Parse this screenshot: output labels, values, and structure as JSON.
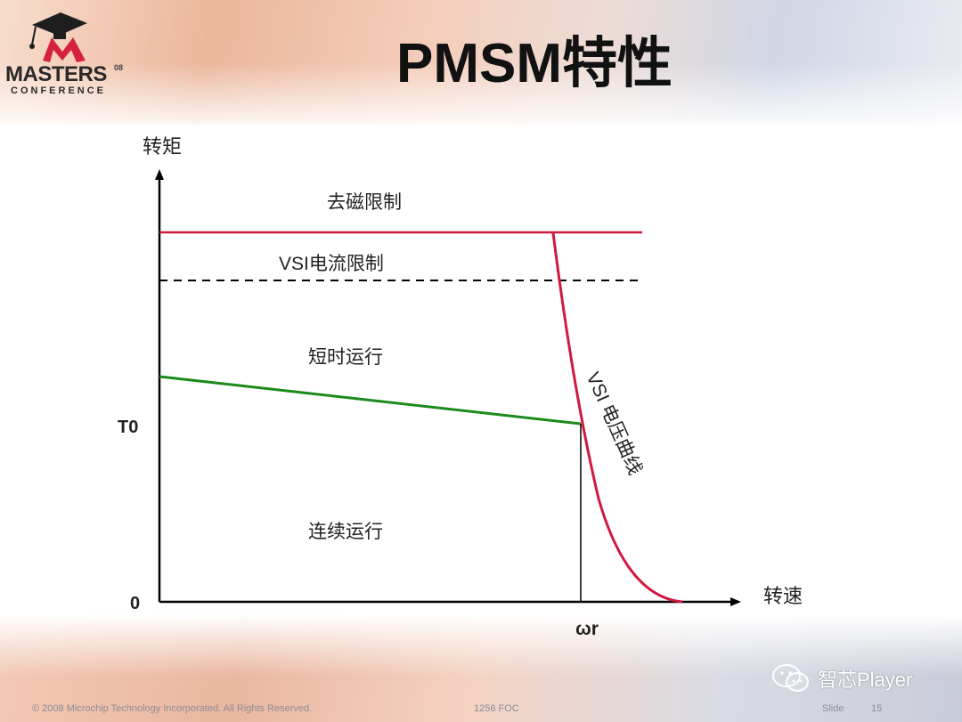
{
  "slide": {
    "title": "PMSM特性",
    "logo": {
      "text": "MASTERS",
      "year": "08",
      "sub": "CONFERENCE"
    }
  },
  "diagram": {
    "y_axis_label": "转矩",
    "x_axis_label": "转速",
    "origin_label": "0",
    "t0_label": "T0",
    "wr_label": "ωr",
    "regions": {
      "demag_limit": "去磁限制",
      "vsi_current_limit": "VSI电流限制",
      "short_time_operation": "短时运行",
      "continuous_operation": "连续运行",
      "vsi_voltage_curve": "VSI 电压曲线"
    },
    "colors": {
      "demag_line": "#d0193f",
      "vsi_curve": "#d0193f",
      "short_time_line": "#1a8a1a",
      "axes": "#000000",
      "dashed_line": "#000000"
    }
  },
  "footer": {
    "copyright": "© 2008 Microchip Technology Incorporated. All Rights Reserved.",
    "course": "1256 FOC",
    "slide_label": "Slide",
    "slide_number": "15"
  },
  "watermark": {
    "text": "智芯Player",
    "icon": "wechat-icon"
  }
}
